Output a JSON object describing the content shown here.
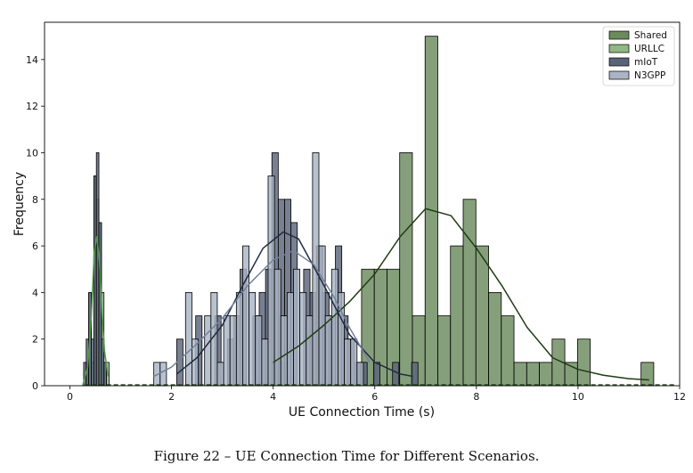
{
  "caption": "Figure 22 – UE Connection Time for Different Scenarios.",
  "chart_data": {
    "type": "histogram",
    "xlabel": "UE Connection Time (s)",
    "ylabel": "Frequency",
    "xlim": [
      -0.5,
      12
    ],
    "ylim": [
      0,
      15.6
    ],
    "xticks": [
      0,
      2,
      4,
      6,
      8,
      10,
      12
    ],
    "yticks": [
      0,
      2,
      4,
      6,
      8,
      10,
      12,
      14
    ],
    "legend_position": "top-right",
    "grid": false,
    "series": [
      {
        "name": "Shared",
        "color": "#6b8a5e",
        "kde_color": "#1f3d12",
        "bins": [
          [
            3.99,
            0.25,
            1
          ],
          [
            5.74,
            0.25,
            5
          ],
          [
            5.99,
            0.25,
            5
          ],
          [
            6.24,
            0.25,
            5
          ],
          [
            6.49,
            0.25,
            10
          ],
          [
            6.74,
            0.25,
            3
          ],
          [
            6.99,
            0.25,
            15
          ],
          [
            7.24,
            0.25,
            3
          ],
          [
            7.49,
            0.25,
            6
          ],
          [
            7.74,
            0.25,
            8
          ],
          [
            7.99,
            0.25,
            6
          ],
          [
            8.24,
            0.25,
            4
          ],
          [
            8.49,
            0.25,
            3
          ],
          [
            8.74,
            0.25,
            1
          ],
          [
            8.99,
            0.25,
            1
          ],
          [
            9.24,
            0.25,
            1
          ],
          [
            9.49,
            0.25,
            2
          ],
          [
            9.74,
            0.25,
            1
          ],
          [
            9.99,
            0.25,
            2
          ],
          [
            11.24,
            0.25,
            1
          ]
        ],
        "kde": [
          [
            4.0,
            1.0
          ],
          [
            4.5,
            1.7
          ],
          [
            5.0,
            2.6
          ],
          [
            5.5,
            3.6
          ],
          [
            6.0,
            4.8
          ],
          [
            6.5,
            6.4
          ],
          [
            7.0,
            7.6
          ],
          [
            7.5,
            7.3
          ],
          [
            8.0,
            5.9
          ],
          [
            8.5,
            4.3
          ],
          [
            9.0,
            2.5
          ],
          [
            9.5,
            1.2
          ],
          [
            10.0,
            0.7
          ],
          [
            10.5,
            0.45
          ],
          [
            11.0,
            0.3
          ],
          [
            11.4,
            0.25
          ]
        ]
      },
      {
        "name": "URLLC",
        "color": "#8fb884",
        "kde_color": "#4f9a47",
        "bins": [
          [
            0.32,
            0.05,
            1
          ],
          [
            0.37,
            0.05,
            4
          ],
          [
            0.42,
            0.05,
            1
          ],
          [
            0.47,
            0.05,
            9
          ],
          [
            0.52,
            0.05,
            8
          ],
          [
            0.57,
            0.05,
            7
          ],
          [
            0.62,
            0.05,
            4
          ],
          [
            0.67,
            0.05,
            1
          ],
          [
            0.72,
            0.05,
            1
          ]
        ],
        "kde": [
          [
            0.25,
            0.0
          ],
          [
            0.35,
            0.8
          ],
          [
            0.42,
            3.0
          ],
          [
            0.48,
            5.8
          ],
          [
            0.53,
            6.4
          ],
          [
            0.58,
            5.4
          ],
          [
            0.63,
            3.2
          ],
          [
            0.68,
            1.5
          ],
          [
            0.75,
            0.4
          ]
        ]
      },
      {
        "name": "mIoT",
        "color": "#5a6479",
        "kde_color": "#1e2c45",
        "bins": [
          [
            0.27,
            0.05,
            1
          ],
          [
            0.32,
            0.05,
            2
          ],
          [
            0.37,
            0.05,
            4
          ],
          [
            0.42,
            0.05,
            2
          ],
          [
            0.47,
            0.05,
            9
          ],
          [
            0.52,
            0.05,
            10
          ],
          [
            0.57,
            0.05,
            7
          ],
          [
            0.62,
            0.05,
            2
          ],
          [
            0.67,
            0.05,
            1
          ],
          [
            2.1,
            0.125,
            2
          ],
          [
            2.475,
            0.125,
            3
          ],
          [
            2.85,
            0.125,
            3
          ],
          [
            3.1,
            0.125,
            2
          ],
          [
            3.225,
            0.125,
            3
          ],
          [
            3.35,
            0.125,
            5
          ],
          [
            3.6,
            0.125,
            3
          ],
          [
            3.725,
            0.125,
            4
          ],
          [
            3.85,
            0.125,
            5
          ],
          [
            3.975,
            0.125,
            10
          ],
          [
            4.1,
            0.125,
            8
          ],
          [
            4.225,
            0.125,
            8
          ],
          [
            4.35,
            0.125,
            7
          ],
          [
            4.6,
            0.125,
            5
          ],
          [
            4.725,
            0.125,
            4
          ],
          [
            4.85,
            0.125,
            6
          ],
          [
            4.975,
            0.125,
            4
          ],
          [
            5.1,
            0.125,
            3
          ],
          [
            5.225,
            0.125,
            6
          ],
          [
            5.35,
            0.125,
            3
          ],
          [
            5.475,
            0.125,
            2
          ],
          [
            5.6,
            0.125,
            1
          ],
          [
            5.725,
            0.125,
            1
          ],
          [
            5.975,
            0.125,
            1
          ],
          [
            6.35,
            0.125,
            1
          ],
          [
            6.725,
            0.125,
            1
          ]
        ],
        "kde": [
          [
            2.1,
            0.5
          ],
          [
            2.5,
            1.2
          ],
          [
            3.0,
            2.6
          ],
          [
            3.4,
            4.3
          ],
          [
            3.8,
            5.9
          ],
          [
            4.2,
            6.6
          ],
          [
            4.5,
            6.3
          ],
          [
            5.0,
            4.3
          ],
          [
            5.5,
            2.2
          ],
          [
            6.0,
            1.0
          ],
          [
            6.5,
            0.5
          ],
          [
            6.75,
            0.4
          ]
        ]
      },
      {
        "name": "N3GPP",
        "color": "#aab4c4",
        "kde_color": "#74819a",
        "bins": [
          [
            1.65,
            0.125,
            1
          ],
          [
            1.775,
            0.125,
            1
          ],
          [
            2.275,
            0.125,
            4
          ],
          [
            2.4,
            0.125,
            2
          ],
          [
            2.65,
            0.125,
            3
          ],
          [
            2.775,
            0.125,
            4
          ],
          [
            2.9,
            0.125,
            1
          ],
          [
            3.025,
            0.125,
            3
          ],
          [
            3.15,
            0.125,
            3
          ],
          [
            3.275,
            0.125,
            4
          ],
          [
            3.4,
            0.125,
            6
          ],
          [
            3.525,
            0.125,
            4
          ],
          [
            3.65,
            0.125,
            3
          ],
          [
            3.775,
            0.125,
            2
          ],
          [
            3.9,
            0.125,
            9
          ],
          [
            4.025,
            0.125,
            5
          ],
          [
            4.15,
            0.125,
            3
          ],
          [
            4.275,
            0.125,
            4
          ],
          [
            4.4,
            0.125,
            5
          ],
          [
            4.525,
            0.125,
            4
          ],
          [
            4.65,
            0.125,
            3
          ],
          [
            4.775,
            0.125,
            10
          ],
          [
            4.9,
            0.125,
            6
          ],
          [
            5.025,
            0.125,
            3
          ],
          [
            5.15,
            0.125,
            5
          ],
          [
            5.275,
            0.125,
            4
          ],
          [
            5.4,
            0.125,
            2
          ],
          [
            5.525,
            0.125,
            2
          ],
          [
            5.65,
            0.125,
            1
          ]
        ],
        "kde": [
          [
            1.65,
            0.4
          ],
          [
            2.0,
            0.8
          ],
          [
            2.5,
            1.8
          ],
          [
            3.0,
            2.9
          ],
          [
            3.5,
            4.3
          ],
          [
            4.0,
            5.4
          ],
          [
            4.4,
            5.8
          ],
          [
            4.8,
            5.2
          ],
          [
            5.2,
            3.8
          ],
          [
            5.5,
            2.5
          ],
          [
            5.9,
            1.0
          ]
        ]
      }
    ],
    "legend": [
      "Shared",
      "URLLC",
      "mIoT",
      "N3GPP"
    ]
  }
}
